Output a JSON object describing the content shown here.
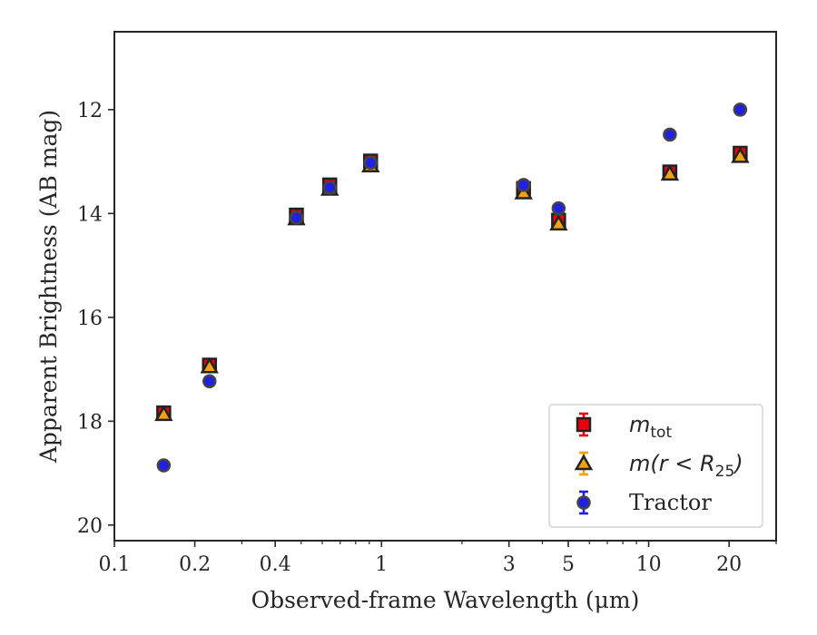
{
  "chart_data": {
    "type": "scatter",
    "xlabel": "Observed-frame Wavelength (μm)",
    "ylabel": "Apparent Brightness (AB mag)",
    "x_scale": "log",
    "xlim": [
      0.1,
      30
    ],
    "ylim": [
      20.3,
      10.5
    ],
    "y_inverted": true,
    "grid": false,
    "legend_position": "lower-right",
    "x_ticks": [
      0.1,
      0.2,
      0.4,
      1,
      3,
      5,
      10,
      20
    ],
    "x_tick_labels": [
      "0.1",
      "0.2",
      "0.4",
      "1",
      "3",
      "5",
      "10",
      "20"
    ],
    "y_ticks": [
      12,
      14,
      16,
      18,
      20
    ],
    "y_tick_labels": [
      "12",
      "14",
      "16",
      "18",
      "20"
    ],
    "series": [
      {
        "name": "m_tot",
        "legend": {
          "math": "m",
          "sub": "tot",
          "rest": ""
        },
        "marker": "square",
        "color": "#e8000b",
        "edge": "#222222",
        "points": [
          {
            "x": 0.153,
            "y": 17.84
          },
          {
            "x": 0.227,
            "y": 16.92
          },
          {
            "x": 0.48,
            "y": 14.03
          },
          {
            "x": 0.64,
            "y": 13.45
          },
          {
            "x": 0.91,
            "y": 12.99
          },
          {
            "x": 3.4,
            "y": 13.52
          },
          {
            "x": 4.6,
            "y": 14.13
          },
          {
            "x": 12.0,
            "y": 13.2
          },
          {
            "x": 22.0,
            "y": 12.84
          }
        ]
      },
      {
        "name": "m(r < R25)",
        "legend": {
          "math": "m(r < R",
          "sub": "25",
          "rest": ")"
        },
        "marker": "triangle",
        "color": "#f1a20e",
        "edge": "#222222",
        "points": [
          {
            "x": 0.153,
            "y": 17.87
          },
          {
            "x": 0.227,
            "y": 16.95
          },
          {
            "x": 0.48,
            "y": 14.1
          },
          {
            "x": 0.64,
            "y": 13.53
          },
          {
            "x": 0.91,
            "y": 13.08
          },
          {
            "x": 3.4,
            "y": 13.6
          },
          {
            "x": 4.6,
            "y": 14.2
          },
          {
            "x": 12.0,
            "y": 13.24
          },
          {
            "x": 22.0,
            "y": 12.9
          }
        ]
      },
      {
        "name": "Tractor",
        "legend": {
          "math": "",
          "sub": "",
          "rest": "Tractor"
        },
        "marker": "circle",
        "color": "#1f1fe6",
        "edge": "#444444",
        "points": [
          {
            "x": 0.153,
            "y": 18.85
          },
          {
            "x": 0.227,
            "y": 17.23
          },
          {
            "x": 0.48,
            "y": 14.08
          },
          {
            "x": 0.64,
            "y": 13.5
          },
          {
            "x": 0.91,
            "y": 13.02
          },
          {
            "x": 3.4,
            "y": 13.45
          },
          {
            "x": 4.6,
            "y": 13.9
          },
          {
            "x": 12.0,
            "y": 12.48
          },
          {
            "x": 22.0,
            "y": 12.0
          }
        ]
      }
    ]
  }
}
